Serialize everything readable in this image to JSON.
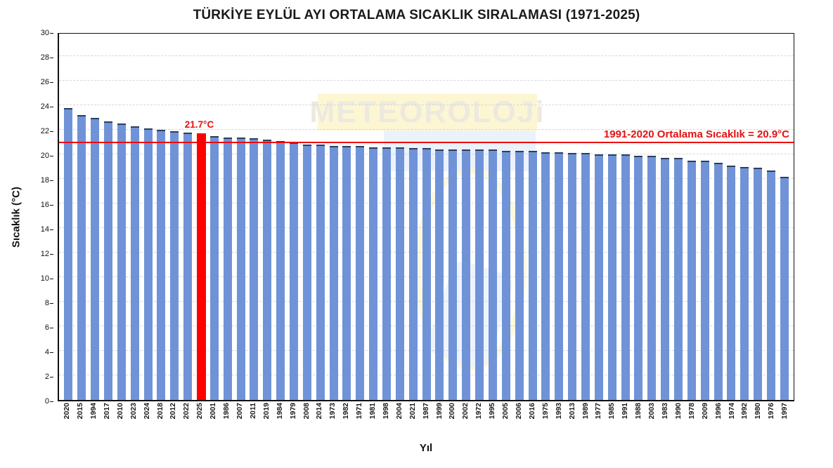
{
  "title": "TÜRKİYE EYLÜL AYI ORTALAMA SICAKLIK SIRALAMASI (1971-2025)",
  "watermark_text": "METEOROLOJi",
  "chart_data": {
    "type": "bar",
    "title": "TÜRKİYE EYLÜL AYI ORTALAMA SICAKLIK SIRALAMASI (1971-2025)",
    "xlabel": "Yıl",
    "ylabel": "Sıcaklık (°C)",
    "ylim": [
      0,
      30
    ],
    "ytick_step": 2,
    "grid": true,
    "sorted": "descending by temperature",
    "categories": [
      "2020",
      "2015",
      "1994",
      "2017",
      "2010",
      "2023",
      "2024",
      "2018",
      "2012",
      "2022",
      "2025",
      "2001",
      "1986",
      "2007",
      "2011",
      "2019",
      "1984",
      "1979",
      "2008",
      "2014",
      "1973",
      "1982",
      "1971",
      "1981",
      "1998",
      "2004",
      "2021",
      "1987",
      "1999",
      "2000",
      "2002",
      "1972",
      "1995",
      "2005",
      "2006",
      "2016",
      "1975",
      "1993",
      "2013",
      "1989",
      "1977",
      "1985",
      "1991",
      "1988",
      "2003",
      "1983",
      "1990",
      "1978",
      "2009",
      "1996",
      "1974",
      "1992",
      "1980",
      "1976",
      "1997"
    ],
    "values": [
      23.8,
      23.2,
      23.0,
      22.7,
      22.5,
      22.3,
      22.1,
      22.0,
      21.9,
      21.8,
      21.7,
      21.5,
      21.4,
      21.4,
      21.3,
      21.2,
      21.1,
      21.0,
      20.8,
      20.8,
      20.7,
      20.7,
      20.7,
      20.6,
      20.6,
      20.6,
      20.5,
      20.5,
      20.4,
      20.4,
      20.4,
      20.4,
      20.4,
      20.3,
      20.3,
      20.3,
      20.2,
      20.2,
      20.1,
      20.1,
      20.0,
      20.0,
      20.0,
      19.9,
      19.9,
      19.7,
      19.7,
      19.5,
      19.5,
      19.3,
      19.1,
      19.0,
      18.9,
      18.7,
      18.2
    ],
    "bar_color": "#7093d8",
    "bar_cap_color": "#2c3e5f",
    "highlight_year": "2025",
    "highlight_color": "#ff0000",
    "highlight_label": "21.7°C",
    "reference_line": {
      "value": 20.9,
      "label": "1991-2020 Ortalama Sıcaklık = 20.9°C",
      "color": "#ee0000"
    },
    "legend": null
  }
}
